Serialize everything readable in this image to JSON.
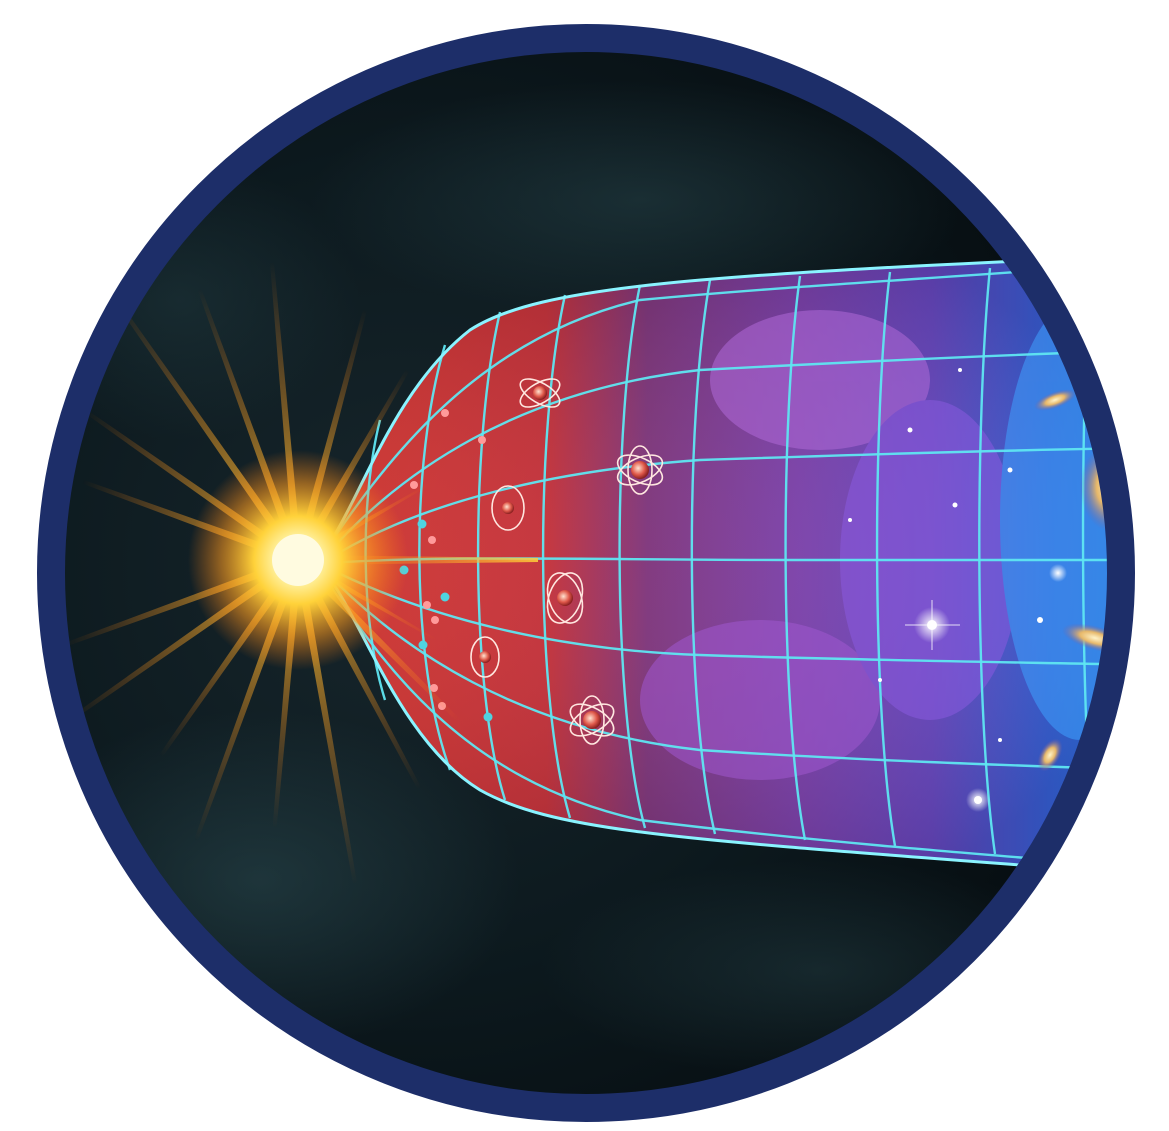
{
  "image": {
    "subject": "big-bang-universe-expansion",
    "colors": {
      "ring": "#1d2e69",
      "space": "#0a1216",
      "burst_core": "#fff2a0",
      "burst_ray": "#ff9a1e",
      "early_universe": "#d8322e",
      "mid_universe": "#7a3aa8",
      "late_universe": "#2a6cf0",
      "grid_line": "#5fe6f2"
    }
  }
}
